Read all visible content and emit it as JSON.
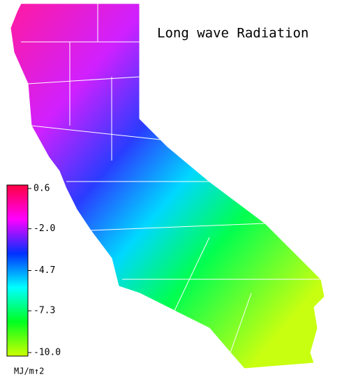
{
  "chart_data": {
    "type": "map",
    "title": "Long wave Radiation",
    "colorbar": {
      "label": "MJ/m↑2",
      "lim": [
        -10,
        0.6
      ],
      "ticks": [
        0.6,
        {
          "value": -2,
          "label": "-2.0"
        },
        -4.7,
        -7.3,
        {
          "value": -10,
          "label": "-10.0"
        }
      ],
      "colors": [
        "#ccff00",
        "#00ff20",
        "#00ffff",
        "#0030ff",
        "#ff00ff",
        "#ff0040"
      ]
    }
  }
}
